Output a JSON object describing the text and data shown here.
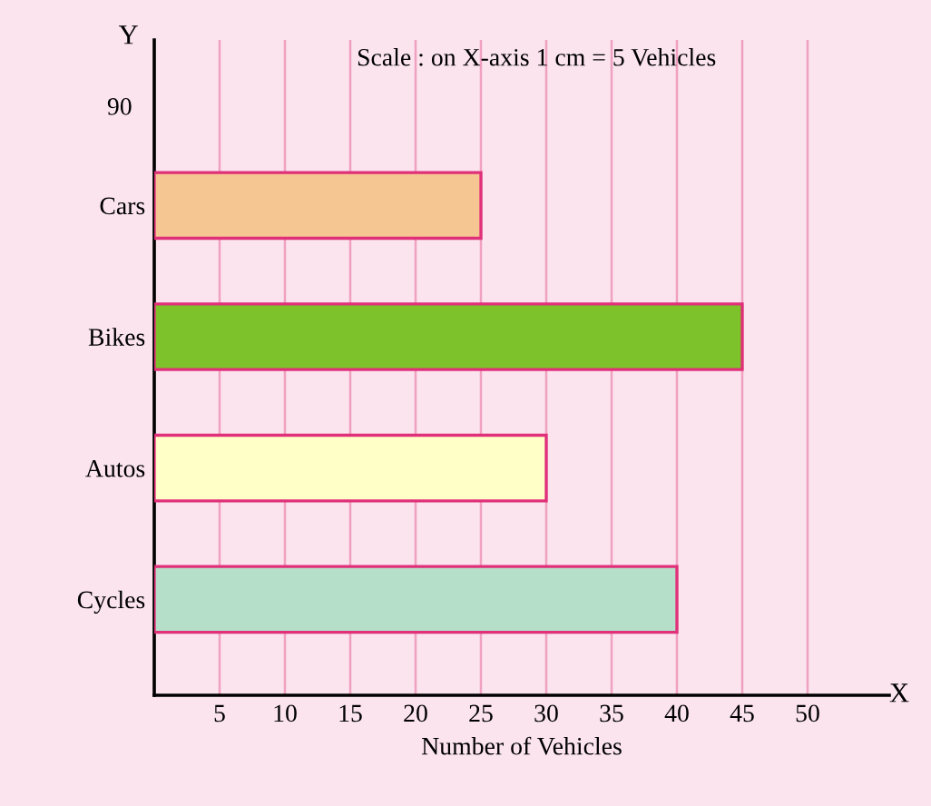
{
  "chart_data": {
    "type": "bar",
    "orientation": "horizontal",
    "title": "Scale : on X-axis 1 cm = 5 Vehicles",
    "xlabel": "Number of Vehicles",
    "ylabel": "Y",
    "annotations": [
      "X",
      "90"
    ],
    "categories": [
      "Cars",
      "Bikes",
      "Autos",
      "Cycles"
    ],
    "values": [
      25,
      45,
      30,
      40
    ],
    "colors": [
      "#f5c592",
      "#7dc22a",
      "#ffffc8",
      "#b5dfc8"
    ],
    "xlim": [
      0,
      56.25
    ],
    "xticks": [
      5,
      10,
      15,
      20,
      25,
      30,
      35,
      40,
      45,
      50
    ],
    "grid": "x",
    "legend": false
  }
}
